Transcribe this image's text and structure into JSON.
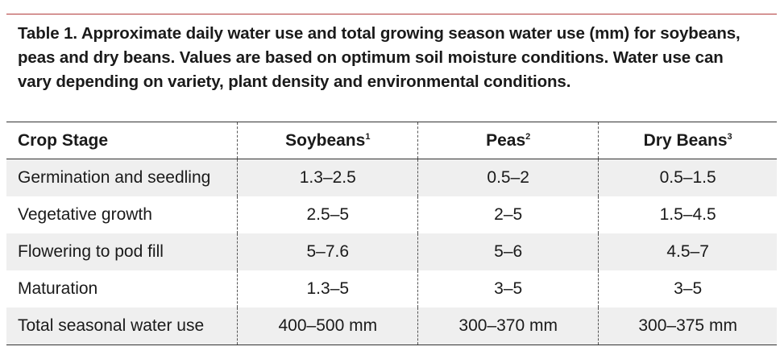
{
  "caption": "Table 1. Approximate daily water use and total growing season water use (mm) for soybeans, peas and dry beans. Values are based on optimum soil moisture conditions. Water use can vary depending on variety, plant density and environmental conditions.",
  "header": {
    "stage": "Crop Stage",
    "soybeans": "Soybeans",
    "soybeans_note": "1",
    "peas": "Peas",
    "peas_note": "2",
    "dry_beans": "Dry Beans",
    "dry_beans_note": "3"
  },
  "rows": [
    {
      "stage": "Germination and seedling",
      "soybeans": "1.3–2.5",
      "peas": "0.5–2",
      "dry_beans": "0.5–1.5"
    },
    {
      "stage": "Vegetative growth",
      "soybeans": "2.5–5",
      "peas": "2–5",
      "dry_beans": "1.5–4.5"
    },
    {
      "stage": "Flowering to pod fill",
      "soybeans": "5–7.6",
      "peas": "5–6",
      "dry_beans": "4.5–7"
    },
    {
      "stage": "Maturation",
      "soybeans": "1.3–5",
      "peas": "3–5",
      "dry_beans": "3–5"
    },
    {
      "stage": "Total seasonal water use",
      "soybeans": "400–500 mm",
      "peas": "300–370 mm",
      "dry_beans": "300–375 mm"
    }
  ]
}
